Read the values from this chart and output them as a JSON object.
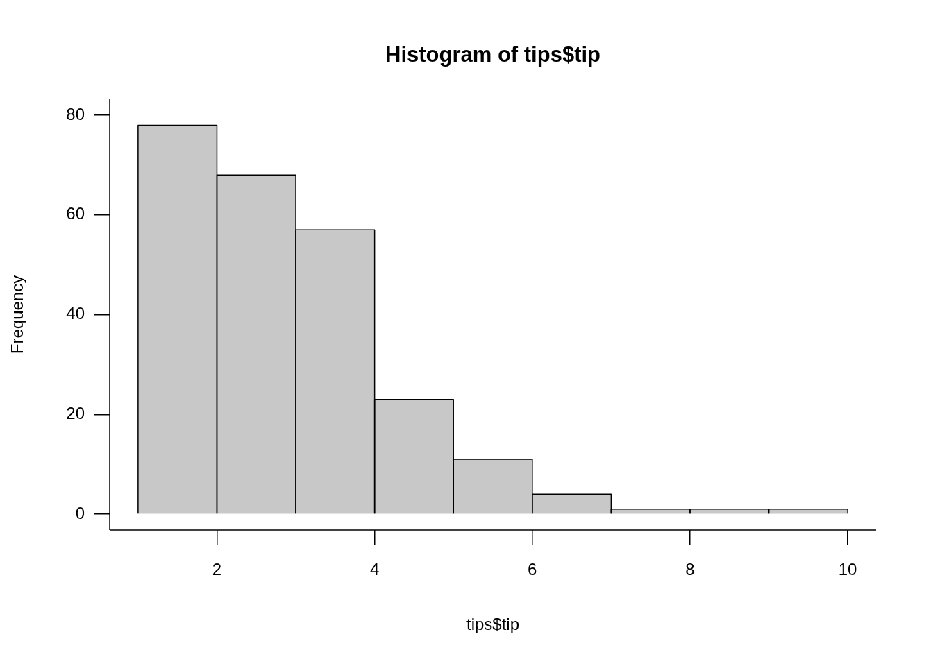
{
  "chart_data": {
    "type": "histogram",
    "title": "Histogram of tips$tip",
    "xlabel": "tips$tip",
    "ylabel": "Frequency",
    "bins": [
      1,
      2,
      3,
      4,
      5,
      6,
      7,
      8,
      9,
      10
    ],
    "values": [
      78,
      68,
      57,
      23,
      11,
      4,
      1,
      1,
      1
    ],
    "color": "#c8c8c8",
    "xlim": [
      0.64,
      10.36
    ],
    "ylim": [
      -3.2,
      83.2
    ],
    "xticks": [
      2,
      4,
      6,
      8,
      10
    ],
    "yticks": [
      0,
      20,
      40,
      60,
      80
    ],
    "grid": false,
    "legend": false
  }
}
